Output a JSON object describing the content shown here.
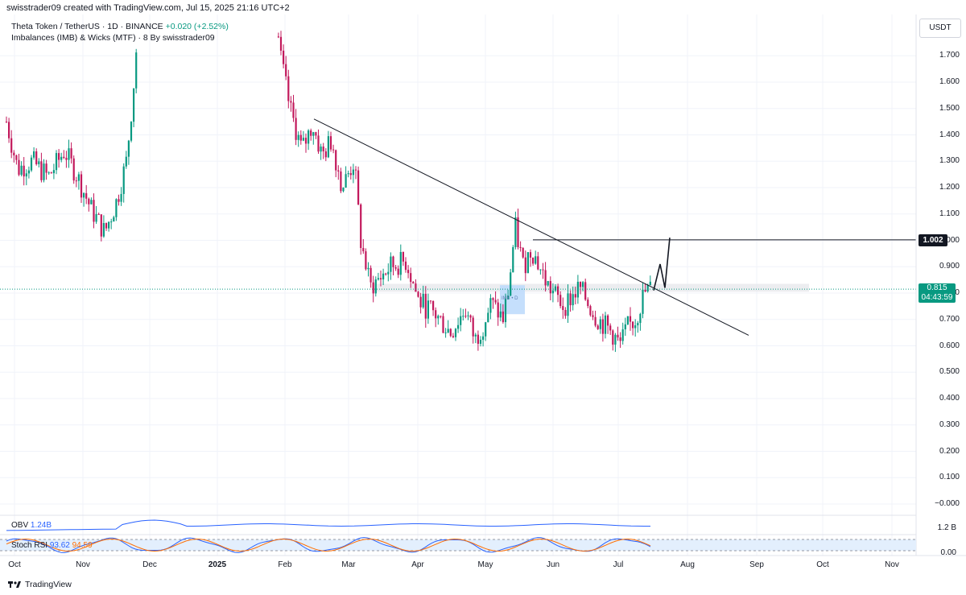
{
  "header": {
    "credit": "swisstrader09 created with TradingView.com, Jul 15, 2025 21:16 UTC+2"
  },
  "legend": {
    "symbol": "Theta Token / TetherUS · 1D · BINANCE",
    "change": "+0.020 (+2.52%)",
    "indicator": "Imbalances (IMB) & Wicks (MTF) · 8 By swisstrader09"
  },
  "currency": "USDT",
  "price_axis": [
    "1.700",
    "1.600",
    "1.500",
    "1.400",
    "1.300",
    "1.200",
    "1.100",
    "1.000",
    "0.900",
    "0.800",
    "0.700",
    "0.600",
    "0.500",
    "0.400",
    "0.300",
    "0.200",
    "0.100",
    "−0.000"
  ],
  "target_price": "1.002",
  "last_price": "0.815",
  "countdown": "04:43:59",
  "imb_label": "IMB • D",
  "time_axis": [
    "Oct",
    "Nov",
    "Dec",
    "2025",
    "Feb",
    "Mar",
    "Apr",
    "May",
    "Jun",
    "Jul",
    "Aug",
    "Sep",
    "Oct",
    "Nov"
  ],
  "obv": {
    "name": "OBV",
    "value": "1.24B",
    "axis": "1.2 B"
  },
  "stoch": {
    "name": "Stoch RSI",
    "k": "93.62",
    "d": "94.59",
    "axis": "0.00"
  },
  "colors": {
    "up": "#089981",
    "down": "#c2185b",
    "trendline": "#131722",
    "obv": "#2962ff",
    "stoch_k": "#2962ff",
    "stoch_d": "#ff6d00"
  },
  "footer": {
    "brand": "TradingView"
  },
  "chart_data": {
    "type": "candlestick",
    "x_labels": [
      "Oct",
      "Nov",
      "Dec",
      "2025",
      "Feb",
      "Mar",
      "Apr",
      "May",
      "Jun",
      "Jul",
      "Aug",
      "Sep",
      "Oct",
      "Nov"
    ],
    "ylim": [
      0,
      1.75
    ],
    "close_path": [
      {
        "x": "Oct",
        "y": 1.45
      },
      {
        "x": "Oct",
        "y": 1.27
      },
      {
        "x": "Oct",
        "y": 1.3
      },
      {
        "x": "Oct",
        "y": 1.24
      },
      {
        "x": "Oct",
        "y": 1.34
      },
      {
        "x": "Nov",
        "y": 1.25
      },
      {
        "x": "Nov",
        "y": 1.12
      },
      {
        "x": "Nov",
        "y": 1.03
      },
      {
        "x": "Nov",
        "y": 1.15
      },
      {
        "x": "Nov",
        "y": 1.3
      },
      {
        "x": "Nov",
        "y": 1.55
      },
      {
        "x": "Dec",
        "y": 1.75
      },
      {
        "x": "Feb",
        "y": 1.75
      },
      {
        "x": "Feb",
        "y": 1.5
      },
      {
        "x": "Feb",
        "y": 1.34
      },
      {
        "x": "Feb",
        "y": 1.44
      },
      {
        "x": "Feb",
        "y": 1.32
      },
      {
        "x": "Feb",
        "y": 1.38
      },
      {
        "x": "Mar",
        "y": 1.2
      },
      {
        "x": "Mar",
        "y": 1.3
      },
      {
        "x": "Mar",
        "y": 1.0
      },
      {
        "x": "Mar",
        "y": 0.82
      },
      {
        "x": "Mar",
        "y": 0.9
      },
      {
        "x": "Mar",
        "y": 0.92
      },
      {
        "x": "Apr",
        "y": 0.77
      },
      {
        "x": "Apr",
        "y": 0.72
      },
      {
        "x": "Apr",
        "y": 0.65
      },
      {
        "x": "Apr",
        "y": 0.74
      },
      {
        "x": "Apr",
        "y": 0.62
      },
      {
        "x": "Apr",
        "y": 0.68
      },
      {
        "x": "May",
        "y": 0.76
      },
      {
        "x": "May",
        "y": 0.7
      },
      {
        "x": "May",
        "y": 0.82
      },
      {
        "x": "May",
        "y": 1.05
      },
      {
        "x": "May",
        "y": 0.9
      },
      {
        "x": "May",
        "y": 0.97
      },
      {
        "x": "Jun",
        "y": 0.83
      },
      {
        "x": "Jun",
        "y": 0.75
      },
      {
        "x": "Jun",
        "y": 0.82
      },
      {
        "x": "Jun",
        "y": 0.71
      },
      {
        "x": "Jun",
        "y": 0.65
      },
      {
        "x": "Jun",
        "y": 0.6
      },
      {
        "x": "Jul",
        "y": 0.67
      },
      {
        "x": "Jul",
        "y": 0.7
      },
      {
        "x": "Jul",
        "y": 0.8
      },
      {
        "x": "Jul",
        "y": 0.815
      }
    ],
    "trendline": [
      {
        "x": "Feb",
        "y": 1.46
      },
      {
        "x": "Sep",
        "y": 0.64
      }
    ],
    "target_level": 1.002,
    "last_price": 0.815
  }
}
